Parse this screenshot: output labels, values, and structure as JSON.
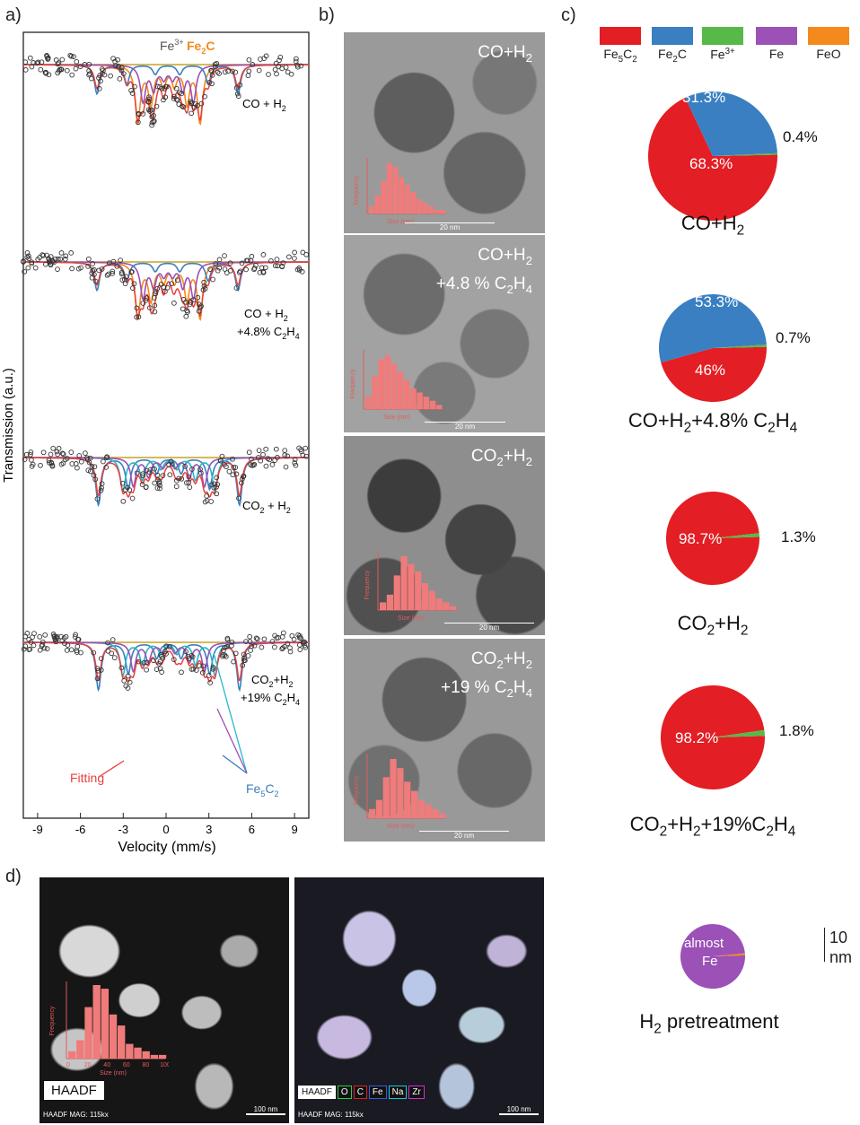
{
  "panels": {
    "a": "a)",
    "b": "b)",
    "c": "c)",
    "d": "d)"
  },
  "mossbauer": {
    "ylabel": "Transmission (a.u.)",
    "xlabel": "Velocity (mm/s)",
    "xticks": [
      "-9",
      "-6",
      "-3",
      "0",
      "3",
      "6",
      "9"
    ],
    "top_annot_fe3": "Fe",
    "top_annot_fe3_sup": "3+",
    "top_annot_fe2c": "Fe",
    "top_annot_fe2c_sub": "2",
    "top_annot_fe2c_tail": "C",
    "spectra": [
      {
        "label_line1": "CO + H",
        "label_sub": "2",
        "label_line2": ""
      },
      {
        "label_line1": "CO + H",
        "label_sub": "2",
        "label_line2": "+4.8% C"
      },
      {
        "label_line1": "CO",
        "label_sub": "2",
        "label_line2": ""
      },
      {
        "label_line1": "CO",
        "label_sub": "2",
        "label_line2": "+19% C"
      }
    ],
    "fitting_label": "Fitting",
    "fe5c2_label": "Fe",
    "fe5c2_sub": "5",
    "fe5c2_tail": "C"
  },
  "tem": {
    "scale": "20 nm",
    "hist_xlabel": "Size (nm)",
    "hist_ylabel": "Frequency",
    "images": [
      {
        "cap1": "CO+H",
        "cap1_sub": "2",
        "cap2": ""
      },
      {
        "cap1": "CO+H",
        "cap1_sub": "2",
        "cap2": "+4.8 % C"
      },
      {
        "cap1": "CO",
        "cap1_sub": "2",
        "cap2": ""
      },
      {
        "cap1": "CO",
        "cap1_sub": "2",
        "cap2": "+19 % C"
      }
    ]
  },
  "legend": [
    {
      "label": "Fe",
      "sub": "5",
      "tail": "C",
      "sub2": "2",
      "color": "#e31e24"
    },
    {
      "label": "Fe",
      "sub": "2",
      "tail": "C",
      "sub2": "",
      "color": "#3a7fc1"
    },
    {
      "label": "Fe",
      "sup": "3+",
      "color": "#57b947"
    },
    {
      "label": "Fe",
      "color": "#9b51b6"
    },
    {
      "label": "FeO",
      "color": "#f48a1c"
    }
  ],
  "chart_data": [
    {
      "type": "pie",
      "title": "CO+H2",
      "slices": [
        {
          "name": "Fe5C2",
          "value": 68.3,
          "label": "68.3%"
        },
        {
          "name": "Fe2C",
          "value": 31.3,
          "label": "31.3%"
        },
        {
          "name": "Fe3+",
          "value": 0.4,
          "label": "0.4%"
        }
      ]
    },
    {
      "type": "pie",
      "title": "CO+H2+4.8% C2H4",
      "slices": [
        {
          "name": "Fe5C2",
          "value": 46,
          "label": "46%"
        },
        {
          "name": "Fe2C",
          "value": 53.3,
          "label": "53.3%"
        },
        {
          "name": "Fe3+",
          "value": 0.7,
          "label": "0.7%"
        }
      ]
    },
    {
      "type": "pie",
      "title": "CO2+H2",
      "slices": [
        {
          "name": "Fe5C2",
          "value": 98.7,
          "label": "98.7%"
        },
        {
          "name": "Fe3+",
          "value": 1.3,
          "label": "1.3%"
        }
      ]
    },
    {
      "type": "pie",
      "title": "CO2+H2+19%C2H4",
      "slices": [
        {
          "name": "Fe5C2",
          "value": 98.2,
          "label": "98.2%"
        },
        {
          "name": "Fe3+",
          "value": 1.8,
          "label": "1.8%"
        }
      ]
    },
    {
      "type": "pie",
      "title": "H2 pretreatment",
      "slices": [
        {
          "name": "Fe",
          "value": 99,
          "label": "almost Fe"
        },
        {
          "name": "FeO",
          "value": 1,
          "label": ""
        }
      ]
    }
  ],
  "pie_captions": [
    {
      "t1": "CO+H",
      "s1": "2",
      "t2": "",
      "s2": "",
      "t3": "",
      "s3": ""
    },
    {
      "t1": "CO+H",
      "s1": "2",
      "t2": "+4.8% C",
      "s2": "2",
      "t3": "H",
      "s3": "4"
    },
    {
      "t1": "CO",
      "s1": "2",
      "t2": "+H",
      "s2": "2",
      "t3": "",
      "s3": ""
    },
    {
      "t1": "CO",
      "s1": "2",
      "t2": "+H",
      "s2": "2",
      "t3": "+19%C",
      "s3": "2"
    },
    {
      "t1": "H",
      "s1": "2",
      "t2": " pretreatment",
      "s2": "",
      "t3": "",
      "s3": ""
    }
  ],
  "pie_last_tail": "H",
  "pie_last_tail_sub": "4",
  "scalebar_text1": "10",
  "scalebar_text2": "nm",
  "haadf": {
    "label": "HAADF",
    "mag": "HAADF  MAG: 115kx",
    "scale": "100 nm",
    "hist_xlabel": "Size (nm)",
    "hist_ylabel": "Frequency",
    "hist_ticks": [
      "0",
      "20",
      "40",
      "60",
      "80",
      "100"
    ],
    "map_legend": [
      {
        "label": "HAADF",
        "color": "#ffffff"
      },
      {
        "label": "O",
        "color": "#2ecc40"
      },
      {
        "label": "C",
        "color": "#e31e24"
      },
      {
        "label": "Fe",
        "color": "#3a5bd9"
      },
      {
        "label": "Na",
        "color": "#20c7d8"
      },
      {
        "label": "Zr",
        "color": "#d62bd6"
      }
    ]
  }
}
